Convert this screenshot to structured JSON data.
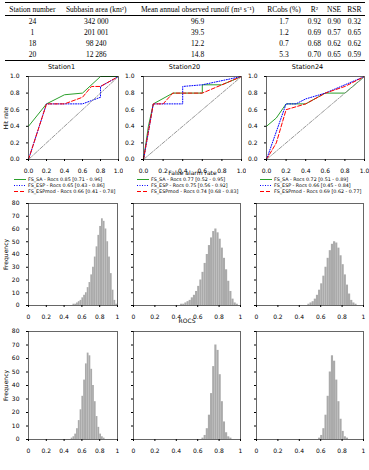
{
  "table": {
    "header": [
      "Station number",
      "Subbasin area (km²)",
      "Mean annual observed runoff (m³ s⁻¹)",
      "RCobs (%)",
      "R²",
      "NSE",
      "RSR"
    ],
    "rows": [
      [
        "24",
        "342 000",
        "96.9",
        "1.7",
        "0.92",
        "0.90",
        "0.32"
      ],
      [
        "1",
        "201 001",
        "39.5",
        "1.2",
        "0.69",
        "0.57",
        "0.65"
      ],
      [
        "18",
        "98 240",
        "12.2",
        "0.7",
        "0.68",
        "0.62",
        "0.62"
      ],
      [
        "20",
        "12 286",
        "14.8",
        "5.3",
        "0.70",
        "0.65",
        "0.59"
      ]
    ]
  },
  "chart_data": [
    {
      "type": "line",
      "title": "Station1",
      "y_label": "Hit rate",
      "xlim": [
        0,
        1
      ],
      "ylim": [
        0,
        1
      ],
      "xticks": [
        {
          "value": 0,
          "label": "0.0"
        },
        0.2,
        0.4,
        0.6,
        0.8,
        {
          "value": 1,
          "label": "1.0"
        }
      ],
      "yticks": [
        {
          "value": 0,
          "label": "0.0"
        },
        0.2,
        0.4,
        0.6,
        0.8,
        {
          "value": 1,
          "label": "1.0"
        }
      ],
      "series": [
        {
          "name": "FS_SA - Rocs 0.85 [0.71 - 0.96]",
          "color": "#2ca02c",
          "line_style": "solid",
          "x": [
            0,
            0.2,
            0.4,
            0.6,
            0.8,
            1
          ],
          "values": [
            0.4,
            0.67,
            0.78,
            0.8,
            1,
            1
          ]
        },
        {
          "name": "FS_ESP - Rocs 0.65 [0.43 - 0.86]",
          "color": "#0000ff",
          "line_style": "dotted",
          "x": [
            0,
            0.2,
            0.6,
            0.8,
            0.8,
            1
          ],
          "values": [
            0,
            0.67,
            0.67,
            0.75,
            0.88,
            1
          ]
        },
        {
          "name": "FS_ESPmod - Rocs 0.66 [0.41 - 0.78]",
          "color": "#ff0000",
          "line_style": "dashed",
          "x": [
            0,
            0.2,
            0.4,
            0.6,
            0.7,
            0.8,
            1
          ],
          "values": [
            0,
            0.67,
            0.67,
            0.75,
            0.88,
            0.88,
            1
          ]
        },
        {
          "color": "#999999",
          "line_style": "dashdot",
          "x": [
            0,
            1
          ],
          "values": [
            0,
            1
          ]
        }
      ]
    },
    {
      "type": "line",
      "title": "Station20",
      "x_label": "False alarm rate",
      "xlim": [
        0,
        1
      ],
      "ylim": [
        0,
        1
      ],
      "xticks": [
        {
          "value": 0,
          "label": "0.0"
        },
        0.2,
        0.4,
        0.6,
        0.8,
        {
          "value": 1,
          "label": "1.0"
        }
      ],
      "yticks": [
        {
          "value": 0,
          "label": "0.0"
        },
        0.2,
        0.4,
        0.6,
        0.8,
        {
          "value": 1,
          "label": "1.0"
        }
      ],
      "series": [
        {
          "name": "FS_SA - Rocs 0.77 [0.52 - 0.95]",
          "color": "#2ca02c",
          "line_style": "solid",
          "x": [
            0,
            0.05,
            0.1,
            0.3,
            0.6,
            0.6,
            0.8,
            1
          ],
          "values": [
            0,
            0.4,
            0.67,
            0.8,
            0.8,
            0.9,
            0.9,
            1
          ]
        },
        {
          "name": "FS_ESP - Rocs 0.75 [0.56 - 0.92]",
          "color": "#0000ff",
          "line_style": "dotted",
          "x": [
            0,
            0.05,
            0.1,
            0.4,
            0.4,
            0.6,
            1
          ],
          "values": [
            0,
            0.33,
            0.67,
            0.67,
            0.88,
            0.9,
            1
          ]
        },
        {
          "name": "FS_ESPmod - Rocs 0.74 [0.68 - 0.83]",
          "color": "#ff0000",
          "line_style": "dashed",
          "x": [
            0,
            0.1,
            0.2,
            0.3,
            0.6,
            0.8,
            1
          ],
          "values": [
            0,
            0.67,
            0.67,
            0.8,
            0.8,
            0.9,
            1
          ]
        },
        {
          "color": "#999999",
          "line_style": "dashdot",
          "x": [
            0,
            1
          ],
          "values": [
            0,
            1
          ]
        }
      ]
    },
    {
      "type": "line",
      "title": "Station24",
      "xlim": [
        0,
        1
      ],
      "ylim": [
        0,
        1
      ],
      "xticks": [
        {
          "value": 0,
          "label": "0.0"
        },
        0.2,
        0.4,
        0.6,
        0.8,
        {
          "value": 1,
          "label": "1.0"
        }
      ],
      "yticks": [
        {
          "value": 0,
          "label": "0.0"
        },
        0.2,
        0.4,
        0.6,
        0.8,
        {
          "value": 1,
          "label": "1.0"
        }
      ],
      "series": [
        {
          "name": "FS_SA - Rocs 0.72 [0.51 - 0.89]",
          "color": "#2ca02c",
          "line_style": "solid",
          "x": [
            0,
            0.1,
            0.2,
            0.4,
            0.6,
            0.8,
            1
          ],
          "values": [
            0.4,
            0.5,
            0.67,
            0.67,
            0.8,
            0.8,
            1
          ]
        },
        {
          "name": "FS_ESP - Rocs 0.66 [0.45 - 0.84]",
          "color": "#0000ff",
          "line_style": "dotted",
          "x": [
            0,
            0.2,
            0.3,
            0.4,
            0.6,
            0.8,
            1
          ],
          "values": [
            0,
            0.67,
            0.67,
            0.73,
            0.8,
            0.9,
            1
          ]
        },
        {
          "name": "FS_ESPmod - Rocs 0.69 [0.62 - 0.77]",
          "color": "#ff0000",
          "line_style": "dashed",
          "x": [
            0,
            0.1,
            0.2,
            0.4,
            0.6,
            0.8,
            1
          ],
          "values": [
            0,
            0.2,
            0.6,
            0.67,
            0.8,
            0.88,
            1
          ]
        },
        {
          "color": "#999999",
          "line_style": "dashdot",
          "x": [
            0,
            1
          ],
          "values": [
            0,
            1
          ]
        }
      ]
    },
    {
      "type": "histogram",
      "y_label": "Frequency",
      "color": "#aaaaaa",
      "xlim": [
        0,
        1
      ],
      "ylim": [
        0,
        80
      ],
      "xticks": [
        0,
        0.2,
        0.4,
        0.6,
        0.8,
        1
      ],
      "yticks": [
        0,
        10,
        20,
        30,
        40,
        50,
        60,
        70,
        80
      ],
      "bins": [
        0.3,
        0.32,
        0.34,
        0.36,
        0.38,
        0.4,
        0.42,
        0.44,
        0.46,
        0.48,
        0.5,
        0.52,
        0.54,
        0.56,
        0.58,
        0.6,
        0.62,
        0.64,
        0.66,
        0.68,
        0.7,
        0.72,
        0.74,
        0.76,
        0.78,
        0.8,
        0.82,
        0.84,
        0.86,
        0.88,
        0.9,
        0.92,
        0.94,
        0.96,
        0.98,
        1.0
      ],
      "values": [
        0,
        0,
        0,
        0,
        0,
        0,
        0,
        0,
        0,
        0,
        1,
        1,
        2,
        3,
        4,
        6,
        8,
        10,
        14,
        18,
        24,
        30,
        38,
        46,
        55,
        62,
        68,
        66,
        60,
        50,
        38,
        25,
        12,
        4,
        1
      ]
    },
    {
      "type": "histogram",
      "x_label": "ROCS",
      "color": "#aaaaaa",
      "tick_labels": "x",
      "xlim": [
        0,
        1
      ],
      "ylim": [
        0,
        80
      ],
      "xticks": [
        0,
        0.2,
        0.4,
        0.6,
        0.8,
        1
      ],
      "yticks": [
        0,
        10,
        20,
        30,
        40,
        50,
        60,
        70,
        80
      ],
      "bins": [
        0.3,
        0.32,
        0.34,
        0.36,
        0.38,
        0.4,
        0.42,
        0.44,
        0.46,
        0.48,
        0.5,
        0.52,
        0.54,
        0.56,
        0.58,
        0.6,
        0.62,
        0.64,
        0.66,
        0.68,
        0.7,
        0.72,
        0.74,
        0.76,
        0.78,
        0.8,
        0.82,
        0.84,
        0.86,
        0.88,
        0.9,
        0.92,
        0.94,
        0.96,
        0.98,
        1.0
      ],
      "values": [
        0,
        0,
        0,
        0,
        0,
        0,
        0,
        1,
        1,
        2,
        3,
        4,
        6,
        8,
        11,
        15,
        20,
        26,
        33,
        40,
        47,
        53,
        58,
        60,
        57,
        52,
        45,
        37,
        28,
        19,
        11,
        5,
        2,
        1,
        0
      ]
    },
    {
      "type": "histogram",
      "color": "#aaaaaa",
      "tick_labels": "x",
      "xlim": [
        0,
        1
      ],
      "ylim": [
        0,
        80
      ],
      "xticks": [
        0,
        0.2,
        0.4,
        0.6,
        0.8,
        1
      ],
      "yticks": [
        0,
        10,
        20,
        30,
        40,
        50,
        60,
        70,
        80
      ],
      "bins": [
        0.3,
        0.32,
        0.34,
        0.36,
        0.38,
        0.4,
        0.42,
        0.44,
        0.46,
        0.48,
        0.5,
        0.52,
        0.54,
        0.56,
        0.58,
        0.6,
        0.62,
        0.64,
        0.66,
        0.68,
        0.7,
        0.72,
        0.74,
        0.76,
        0.78,
        0.8,
        0.82,
        0.84,
        0.86,
        0.88,
        0.9,
        0.92,
        0.94,
        0.96,
        0.98,
        1.0
      ],
      "values": [
        0,
        0,
        0,
        0,
        0,
        0,
        0,
        0,
        0,
        1,
        2,
        3,
        5,
        8,
        12,
        17,
        23,
        30,
        37,
        43,
        48,
        50,
        49,
        45,
        39,
        32,
        24,
        16,
        9,
        4,
        2,
        1,
        0,
        0,
        0
      ]
    },
    {
      "type": "histogram",
      "y_label": "Frequency",
      "color": "#aaaaaa",
      "xlim": [
        0,
        1
      ],
      "ylim": [
        0,
        80
      ],
      "xticks": [
        0,
        0.2,
        0.4,
        0.6,
        0.8,
        1
      ],
      "yticks": [
        0,
        10,
        20,
        30,
        40,
        50,
        60,
        70,
        80
      ],
      "bins": [
        0.3,
        0.32,
        0.34,
        0.36,
        0.38,
        0.4,
        0.42,
        0.44,
        0.46,
        0.48,
        0.5,
        0.52,
        0.54,
        0.56,
        0.58,
        0.6,
        0.62,
        0.64,
        0.66,
        0.68,
        0.7,
        0.72,
        0.74,
        0.76,
        0.78,
        0.8,
        0.82,
        0.84,
        0.86,
        0.88,
        0.9,
        0.92,
        0.94,
        0.96,
        0.98,
        1.0
      ],
      "values": [
        0,
        0,
        0,
        0,
        0,
        0,
        0,
        0,
        0,
        1,
        2,
        4,
        8,
        14,
        22,
        32,
        44,
        56,
        64,
        62,
        52,
        40,
        28,
        17,
        9,
        4,
        2,
        1,
        0,
        0,
        0,
        0,
        0,
        0,
        0
      ]
    },
    {
      "type": "histogram",
      "color": "#aaaaaa",
      "tick_labels": "x",
      "xlim": [
        0,
        1
      ],
      "ylim": [
        0,
        80
      ],
      "xticks": [
        0,
        0.2,
        0.4,
        0.6,
        0.8,
        1
      ],
      "yticks": [
        0,
        10,
        20,
        30,
        40,
        50,
        60,
        70,
        80
      ],
      "bins": [
        0.3,
        0.32,
        0.34,
        0.36,
        0.38,
        0.4,
        0.42,
        0.44,
        0.46,
        0.48,
        0.5,
        0.52,
        0.54,
        0.56,
        0.58,
        0.6,
        0.62,
        0.64,
        0.66,
        0.68,
        0.7,
        0.72,
        0.74,
        0.76,
        0.78,
        0.8,
        0.82,
        0.84,
        0.86,
        0.88,
        0.9,
        0.92,
        0.94,
        0.96,
        0.98,
        1.0
      ],
      "values": [
        0,
        0,
        0,
        0,
        0,
        0,
        0,
        0,
        0,
        0,
        0,
        0,
        0,
        0,
        0,
        0,
        0,
        1,
        3,
        8,
        18,
        34,
        54,
        70,
        66,
        48,
        28,
        13,
        5,
        2,
        1,
        0,
        0,
        0,
        0
      ]
    },
    {
      "type": "histogram",
      "color": "#aaaaaa",
      "tick_labels": "x",
      "xlim": [
        0,
        1
      ],
      "ylim": [
        0,
        80
      ],
      "xticks": [
        0,
        0.2,
        0.4,
        0.6,
        0.8,
        1
      ],
      "yticks": [
        0,
        10,
        20,
        30,
        40,
        50,
        60,
        70,
        80
      ],
      "bins": [
        0.3,
        0.32,
        0.34,
        0.36,
        0.38,
        0.4,
        0.42,
        0.44,
        0.46,
        0.48,
        0.5,
        0.52,
        0.54,
        0.56,
        0.58,
        0.6,
        0.62,
        0.64,
        0.66,
        0.68,
        0.7,
        0.72,
        0.74,
        0.76,
        0.78,
        0.8,
        0.82,
        0.84,
        0.86,
        0.88,
        0.9,
        0.92,
        0.94,
        0.96,
        0.98,
        1.0
      ],
      "values": [
        0,
        0,
        0,
        0,
        0,
        0,
        0,
        0,
        0,
        0,
        0,
        0,
        0,
        0,
        1,
        3,
        8,
        18,
        32,
        50,
        62,
        58,
        44,
        28,
        15,
        6,
        2,
        1,
        0,
        0,
        0,
        0,
        0,
        0,
        0
      ]
    }
  ]
}
